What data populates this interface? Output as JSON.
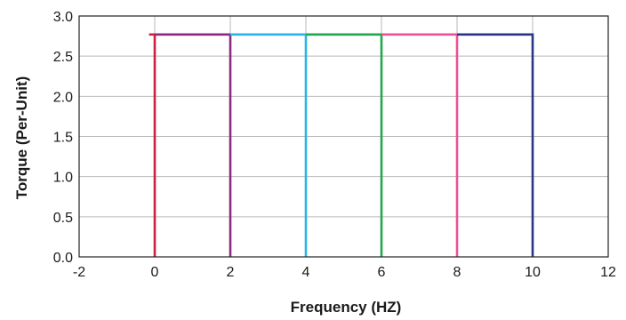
{
  "chart_data": {
    "type": "line",
    "title": "",
    "xlabel": "Frequency (HZ)",
    "ylabel": "Torque (Per-Unit)",
    "xlim": [
      -2,
      12
    ],
    "ylim": [
      0,
      3
    ],
    "x_ticks": [
      -2,
      0,
      2,
      4,
      6,
      8,
      10,
      12
    ],
    "x_tick_labels": [
      "-2",
      "0",
      "2",
      "4",
      "6",
      "8",
      "10",
      "12"
    ],
    "y_ticks": [
      0,
      0.5,
      1,
      1.5,
      2,
      2.5,
      3
    ],
    "y_tick_labels": [
      "0.0",
      "0.5",
      "1.0",
      "1.5",
      "2.0",
      "2.5",
      "3.0"
    ],
    "grid": true,
    "legend": "none",
    "series": [
      {
        "color": "#d0213c",
        "x": [
          -0.15,
          0,
          0
        ],
        "y": [
          2.77,
          2.77,
          0
        ]
      },
      {
        "color": "#8e2a7e",
        "x": [
          0,
          2,
          2
        ],
        "y": [
          2.77,
          2.77,
          0
        ]
      },
      {
        "color": "#29b6e6",
        "x": [
          2,
          4,
          4
        ],
        "y": [
          2.77,
          2.77,
          0
        ]
      },
      {
        "color": "#20a84c",
        "x": [
          4,
          6,
          6
        ],
        "y": [
          2.77,
          2.77,
          0
        ]
      },
      {
        "color": "#ef4f9a",
        "x": [
          6,
          8,
          8
        ],
        "y": [
          2.77,
          2.77,
          0
        ]
      },
      {
        "color": "#2b3588",
        "x": [
          8,
          10,
          10
        ],
        "y": [
          2.77,
          2.77,
          0
        ]
      }
    ]
  }
}
